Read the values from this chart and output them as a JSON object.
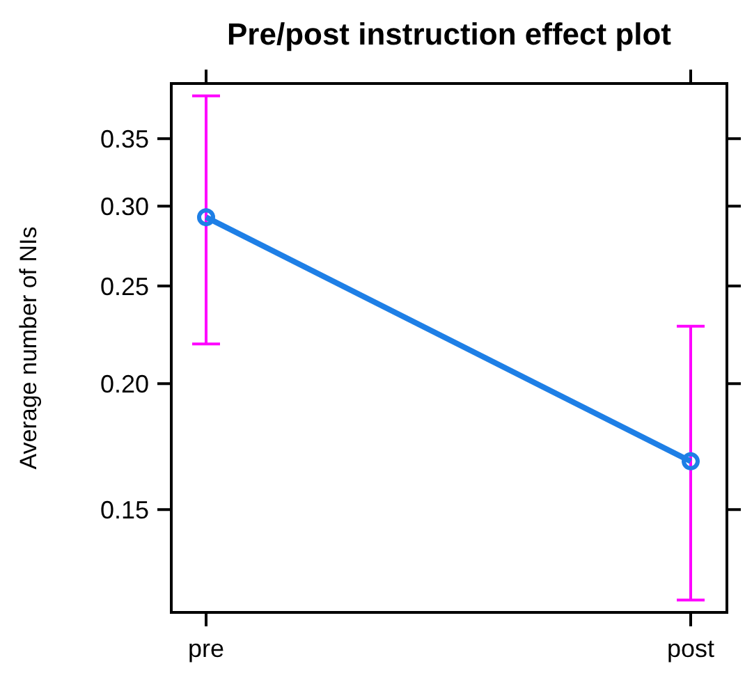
{
  "chart_data": {
    "type": "line",
    "title": "Pre/post instruction effect plot",
    "ylabel": "Average number of NIs",
    "categories": [
      "pre",
      "post"
    ],
    "series": [
      {
        "color": "#1e7fe6",
        "values": [
          0.2925,
          0.1675
        ],
        "errors": [
          [
            0.219,
            0.386
          ],
          [
            0.122,
            0.228
          ]
        ]
      }
    ],
    "log": true,
    "ylim": [
      0.1186,
      0.397
    ],
    "yticks": [
      {
        "value": 0.15,
        "label": "0.15"
      },
      {
        "value": 0.2,
        "label": "0.20"
      },
      {
        "value": 0.25,
        "label": "0.25"
      },
      {
        "value": 0.3,
        "label": "0.30"
      },
      {
        "value": 0.35,
        "label": "0.35"
      }
    ],
    "marker": "circle",
    "line_style": "solid"
  }
}
